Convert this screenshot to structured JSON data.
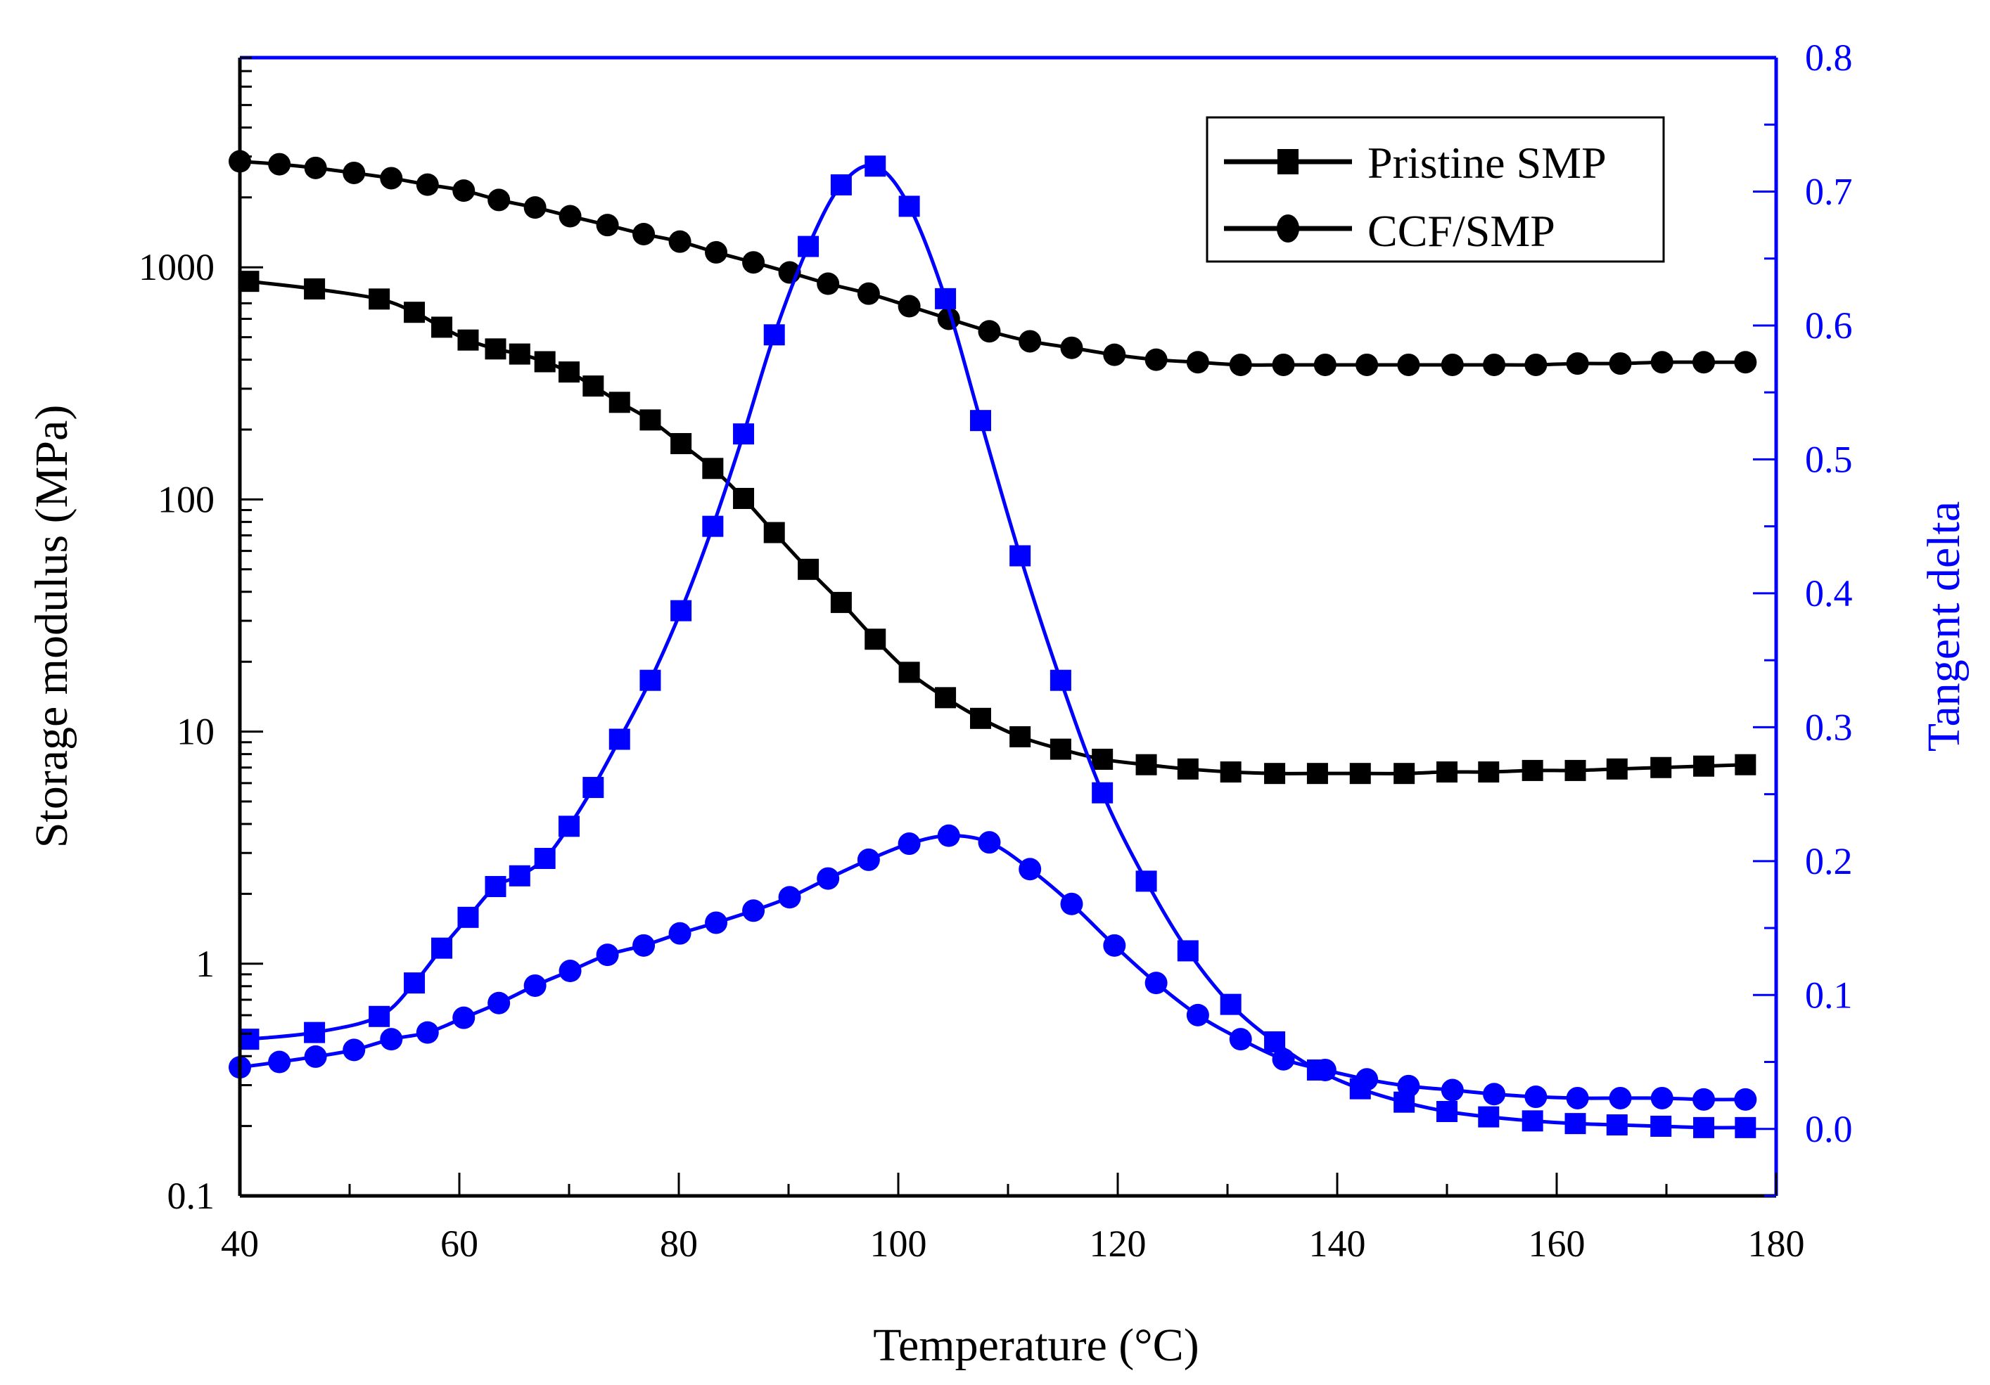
{
  "chart_data": {
    "type": "line",
    "title": "",
    "xlabel": "Temperature (°C)",
    "ylabel": "Storage modulus (MPa)",
    "y2label": "Tangent delta",
    "xlim": [
      40,
      180
    ],
    "ylim": [
      0.1,
      8000
    ],
    "yscale": "log",
    "y2lim": [
      -0.05,
      0.8
    ],
    "grid": false,
    "legend_position": "top-right",
    "x_ticks": [
      "40",
      "60",
      "80",
      "100",
      "120",
      "140",
      "160",
      "180"
    ],
    "y_ticks": [
      "0.1",
      "1",
      "10",
      "100",
      "1000"
    ],
    "y2_ticks": [
      "0.0",
      "0.1",
      "0.2",
      "0.3",
      "0.4",
      "0.5",
      "0.6",
      "0.7",
      "0.8"
    ],
    "legend": [
      "Pristine SMP",
      "CCF/SMP"
    ],
    "colors": {
      "modulus": "#000000",
      "tan_delta": "#0000ff"
    },
    "series": [
      {
        "name": "Pristine SMP",
        "axis": "left",
        "quantity": "storage modulus",
        "marker": "square",
        "color": "#000000",
        "x": [
          40.8,
          46.8,
          52.7,
          55.9,
          58.4,
          60.8,
          63.3,
          65.5,
          67.8,
          70.0,
          72.2,
          74.6,
          77.4,
          80.2,
          83.1,
          85.9,
          88.7,
          91.8,
          94.8,
          97.9,
          101.0,
          104.3,
          107.5,
          111.1,
          114.8,
          118.6,
          122.6,
          126.4,
          130.3,
          134.3,
          138.2,
          142.1,
          146.1,
          150.0,
          153.8,
          157.8,
          161.7,
          165.5,
          169.5,
          173.4,
          177.2
        ],
        "y": [
          870,
          807,
          730,
          640,
          552,
          486,
          445,
          423,
          392,
          354,
          308,
          262,
          220,
          174,
          136,
          101,
          72,
          50,
          36,
          25,
          18,
          14,
          11.4,
          9.5,
          8.4,
          7.6,
          7.2,
          6.9,
          6.7,
          6.6,
          6.6,
          6.6,
          6.6,
          6.7,
          6.7,
          6.8,
          6.8,
          6.9,
          7.0,
          7.1,
          7.2
        ]
      },
      {
        "name": "CCF/SMP",
        "axis": "left",
        "quantity": "storage modulus",
        "marker": "circle",
        "color": "#000000",
        "x": [
          40.0,
          43.6,
          46.9,
          50.4,
          53.8,
          57.1,
          60.4,
          63.6,
          66.9,
          70.1,
          73.5,
          76.8,
          80.1,
          83.4,
          86.8,
          90.1,
          93.6,
          97.3,
          101.0,
          104.6,
          108.3,
          112.0,
          115.8,
          119.7,
          123.5,
          127.3,
          131.2,
          135.1,
          138.9,
          142.7,
          146.5,
          150.5,
          154.3,
          158.1,
          161.9,
          165.8,
          169.6,
          173.4,
          177.2
        ],
        "y": [
          2860,
          2780,
          2680,
          2550,
          2420,
          2270,
          2140,
          1950,
          1810,
          1660,
          1520,
          1390,
          1290,
          1160,
          1050,
          950,
          850,
          770,
          680,
          600,
          530,
          480,
          450,
          420,
          400,
          390,
          380,
          380,
          380,
          380,
          380,
          380,
          380,
          380,
          385,
          385,
          390,
          390,
          390
        ]
      },
      {
        "name": "Pristine SMP",
        "axis": "right",
        "quantity": "tangent delta",
        "marker": "square",
        "color": "#0000ff",
        "x": [
          40.8,
          46.8,
          52.7,
          55.9,
          58.4,
          60.8,
          63.3,
          65.5,
          67.8,
          70.0,
          72.2,
          74.6,
          77.4,
          80.2,
          83.1,
          85.9,
          88.7,
          91.8,
          94.8,
          97.9,
          101.0,
          104.3,
          107.5,
          111.1,
          114.8,
          118.6,
          122.6,
          126.4,
          130.3,
          134.3,
          138.2,
          142.1,
          146.1,
          150.0,
          153.8,
          157.8,
          161.7,
          165.5,
          169.5,
          173.4,
          177.2
        ],
        "y": [
          0.067,
          0.072,
          0.084,
          0.109,
          0.135,
          0.158,
          0.181,
          0.189,
          0.202,
          0.226,
          0.255,
          0.291,
          0.335,
          0.387,
          0.45,
          0.519,
          0.593,
          0.659,
          0.705,
          0.719,
          0.689,
          0.62,
          0.529,
          0.428,
          0.335,
          0.251,
          0.185,
          0.133,
          0.093,
          0.065,
          0.044,
          0.03,
          0.02,
          0.013,
          0.009,
          0.006,
          0.004,
          0.003,
          0.002,
          0.001,
          0.001
        ]
      },
      {
        "name": "CCF/SMP",
        "axis": "right",
        "quantity": "tangent delta",
        "marker": "circle",
        "color": "#0000ff",
        "x": [
          40.0,
          43.6,
          46.9,
          50.4,
          53.8,
          57.1,
          60.4,
          63.6,
          66.9,
          70.1,
          73.5,
          76.8,
          80.1,
          83.4,
          86.8,
          90.1,
          93.6,
          97.3,
          101.0,
          104.6,
          108.3,
          112.0,
          115.8,
          119.7,
          123.5,
          127.3,
          131.2,
          135.1,
          138.9,
          142.7,
          146.5,
          150.5,
          154.3,
          158.1,
          161.9,
          165.8,
          169.6,
          173.4,
          177.2
        ],
        "y": [
          0.046,
          0.05,
          0.054,
          0.059,
          0.067,
          0.072,
          0.083,
          0.094,
          0.107,
          0.118,
          0.13,
          0.137,
          0.146,
          0.154,
          0.163,
          0.173,
          0.187,
          0.201,
          0.213,
          0.219,
          0.214,
          0.194,
          0.168,
          0.137,
          0.109,
          0.085,
          0.067,
          0.052,
          0.044,
          0.037,
          0.032,
          0.029,
          0.026,
          0.024,
          0.023,
          0.023,
          0.023,
          0.022,
          0.022
        ]
      }
    ]
  }
}
